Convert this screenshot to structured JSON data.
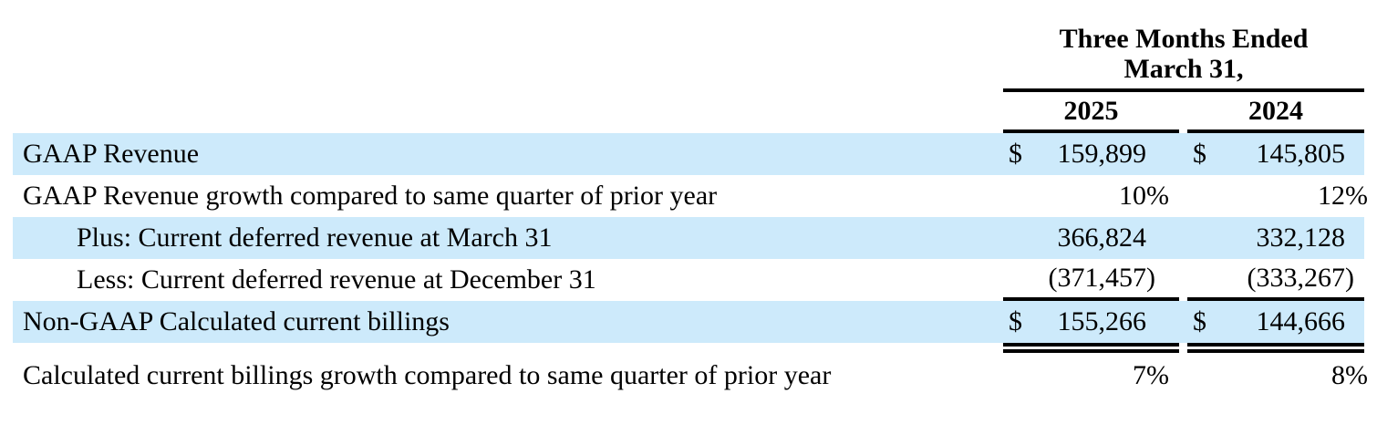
{
  "header": {
    "period_line1": "Three Months Ended",
    "period_line2": "March 31,",
    "year_2025": "2025",
    "year_2024": "2024"
  },
  "colors": {
    "row_highlight": "#cdeafb",
    "rule": "#000000",
    "text": "#000000"
  },
  "rows": [
    {
      "label": "GAAP Revenue",
      "y2025": {
        "cur": "$",
        "pre": "",
        "num": "159,899",
        "suf": ""
      },
      "y2024": {
        "cur": "$",
        "pre": "",
        "num": "145,805",
        "suf": ""
      }
    },
    {
      "label": "GAAP Revenue growth compared to same quarter of prior year",
      "y2025": {
        "cur": "",
        "pre": "",
        "num": "10",
        "suf": "%"
      },
      "y2024": {
        "cur": "",
        "pre": "",
        "num": "12",
        "suf": "%"
      }
    },
    {
      "label": "Plus: Current deferred revenue at March 31",
      "y2025": {
        "cur": "",
        "pre": "",
        "num": "366,824",
        "suf": ""
      },
      "y2024": {
        "cur": "",
        "pre": "",
        "num": "332,128",
        "suf": ""
      }
    },
    {
      "label": "Less: Current deferred revenue at December 31",
      "y2025": {
        "cur": "",
        "pre": "(",
        "num": "371,457",
        "suf": ")"
      },
      "y2024": {
        "cur": "",
        "pre": "(",
        "num": "333,267",
        "suf": ")"
      }
    },
    {
      "label": "Non-GAAP Calculated current billings",
      "y2025": {
        "cur": "$",
        "pre": "",
        "num": "155,266",
        "suf": ""
      },
      "y2024": {
        "cur": "$",
        "pre": "",
        "num": "144,666",
        "suf": ""
      }
    },
    {
      "label": "Calculated current billings growth compared to same quarter of prior year",
      "y2025": {
        "cur": "",
        "pre": "",
        "num": "7",
        "suf": "%"
      },
      "y2024": {
        "cur": "",
        "pre": "",
        "num": "8",
        "suf": "%"
      }
    }
  ]
}
